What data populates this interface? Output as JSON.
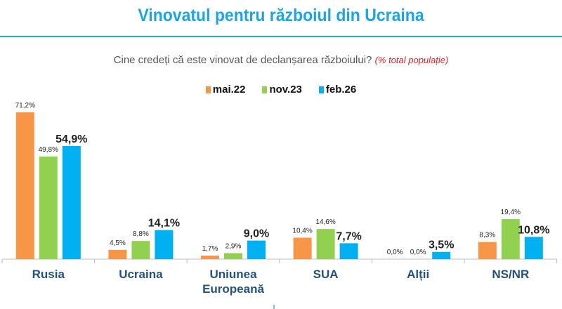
{
  "chart_data": {
    "type": "bar",
    "title": "Vinovatul pentru războiul din Ucraina",
    "subtitle": "Cine credeți că este vinovat de declanșarea războiului?",
    "subtitle_note": "(% total populație)",
    "categories": [
      "Rusia",
      "Ucraina",
      "Uniunea Europeană",
      "SUA",
      "Alții",
      "NS/NR"
    ],
    "category_lines": [
      [
        "Rusia"
      ],
      [
        "Ucraina"
      ],
      [
        "Uniunea",
        "Europeană"
      ],
      [
        "SUA"
      ],
      [
        "Alții"
      ],
      [
        "NS/NR"
      ]
    ],
    "series": [
      {
        "name": "mai.22",
        "color": "#f79646",
        "values": [
          71.2,
          4.5,
          1.7,
          10.4,
          0.0,
          8.3
        ],
        "labels": [
          "71,2%",
          "4,5%",
          "1,7%",
          "10,4%",
          "0,0%",
          "8,3%"
        ]
      },
      {
        "name": "nov.23",
        "color": "#92d050",
        "values": [
          49.8,
          8.8,
          2.9,
          14.6,
          0.0,
          19.4
        ],
        "labels": [
          "49,8%",
          "8,8%",
          "2,9%",
          "14,6%",
          "0,0%",
          "19,4%"
        ]
      },
      {
        "name": "feb.26",
        "color": "#00b0f0",
        "values": [
          54.9,
          14.1,
          9.0,
          7.7,
          3.5,
          10.8
        ],
        "labels": [
          "54,9%",
          "14,1%",
          "9,0%",
          "7,7%",
          "3,5%",
          "10,8%"
        ],
        "emphasized": true
      }
    ],
    "legend_position": "top-center",
    "grid": false,
    "ylim": [
      0,
      75
    ]
  }
}
